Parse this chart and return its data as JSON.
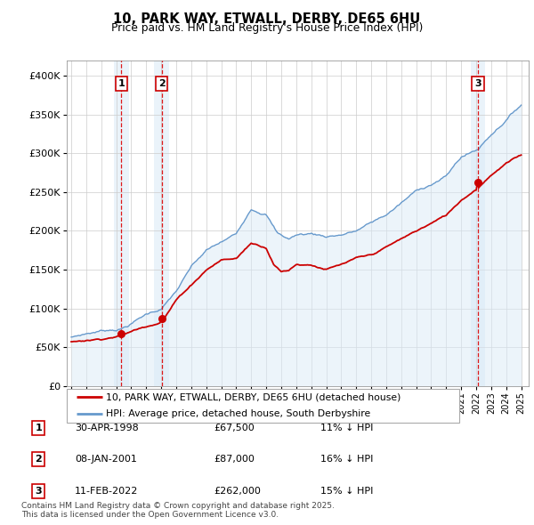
{
  "title1": "10, PARK WAY, ETWALL, DERBY, DE65 6HU",
  "title2": "Price paid vs. HM Land Registry's House Price Index (HPI)",
  "ylabel_ticks": [
    "£0",
    "£50K",
    "£100K",
    "£150K",
    "£200K",
    "£250K",
    "£300K",
    "£350K",
    "£400K"
  ],
  "ytick_vals": [
    0,
    50000,
    100000,
    150000,
    200000,
    250000,
    300000,
    350000,
    400000
  ],
  "ylim": [
    0,
    420000
  ],
  "sale_dates_num": [
    1998.33,
    2001.03,
    2022.12
  ],
  "sale_prices": [
    67500,
    87000,
    262000
  ],
  "sale_labels": [
    "1",
    "2",
    "3"
  ],
  "sale_info": [
    {
      "num": "1",
      "date": "30-APR-1998",
      "price": "£67,500",
      "pct": "11% ↓ HPI"
    },
    {
      "num": "2",
      "date": "08-JAN-2001",
      "price": "£87,000",
      "pct": "16% ↓ HPI"
    },
    {
      "num": "3",
      "date": "11-FEB-2022",
      "price": "£262,000",
      "pct": "15% ↓ HPI"
    }
  ],
  "legend_line1": "10, PARK WAY, ETWALL, DERBY, DE65 6HU (detached house)",
  "legend_line2": "HPI: Average price, detached house, South Derbyshire",
  "footer": "Contains HM Land Registry data © Crown copyright and database right 2025.\nThis data is licensed under the Open Government Licence v3.0.",
  "price_line_color": "#cc0000",
  "hpi_line_color": "#6699cc",
  "hpi_fill_color": "#daeaf7",
  "vline_color": "#dd0000",
  "background_color": "#ffffff",
  "grid_color": "#cccccc",
  "hpi_key_years": [
    1995.0,
    1996.0,
    1997.0,
    1998.33,
    1999.0,
    2000.0,
    2001.03,
    2002.0,
    2003.0,
    2004.0,
    2005.0,
    2006.0,
    2007.0,
    2008.0,
    2008.75,
    2009.5,
    2010.0,
    2011.0,
    2012.0,
    2013.0,
    2014.0,
    2015.0,
    2016.0,
    2017.0,
    2018.0,
    2019.0,
    2020.0,
    2021.0,
    2022.12,
    2023.0,
    2024.0,
    2025.0
  ],
  "hpi_key_vals": [
    63000,
    68000,
    72000,
    76000,
    83000,
    95000,
    103000,
    125000,
    155000,
    175000,
    185000,
    195000,
    230000,
    225000,
    200000,
    193000,
    198000,
    200000,
    197000,
    200000,
    205000,
    215000,
    225000,
    240000,
    255000,
    265000,
    275000,
    300000,
    310000,
    330000,
    350000,
    370000
  ],
  "price_key_years": [
    1995.0,
    1997.0,
    1998.33,
    2001.03,
    2002.0,
    2003.0,
    2004.0,
    2005.0,
    2006.0,
    2007.0,
    2008.0,
    2008.5,
    2009.0,
    2009.5,
    2010.0,
    2011.0,
    2012.0,
    2013.0,
    2014.0,
    2015.0,
    2016.0,
    2017.0,
    2018.0,
    2019.0,
    2020.0,
    2021.0,
    2022.12,
    2023.0,
    2024.0,
    2025.0
  ],
  "price_key_vals": [
    57000,
    62000,
    67500,
    87000,
    115000,
    135000,
    155000,
    168000,
    170000,
    190000,
    185000,
    165000,
    155000,
    157000,
    165000,
    165000,
    160000,
    165000,
    172000,
    175000,
    185000,
    195000,
    205000,
    215000,
    225000,
    245000,
    262000,
    280000,
    295000,
    305000
  ]
}
